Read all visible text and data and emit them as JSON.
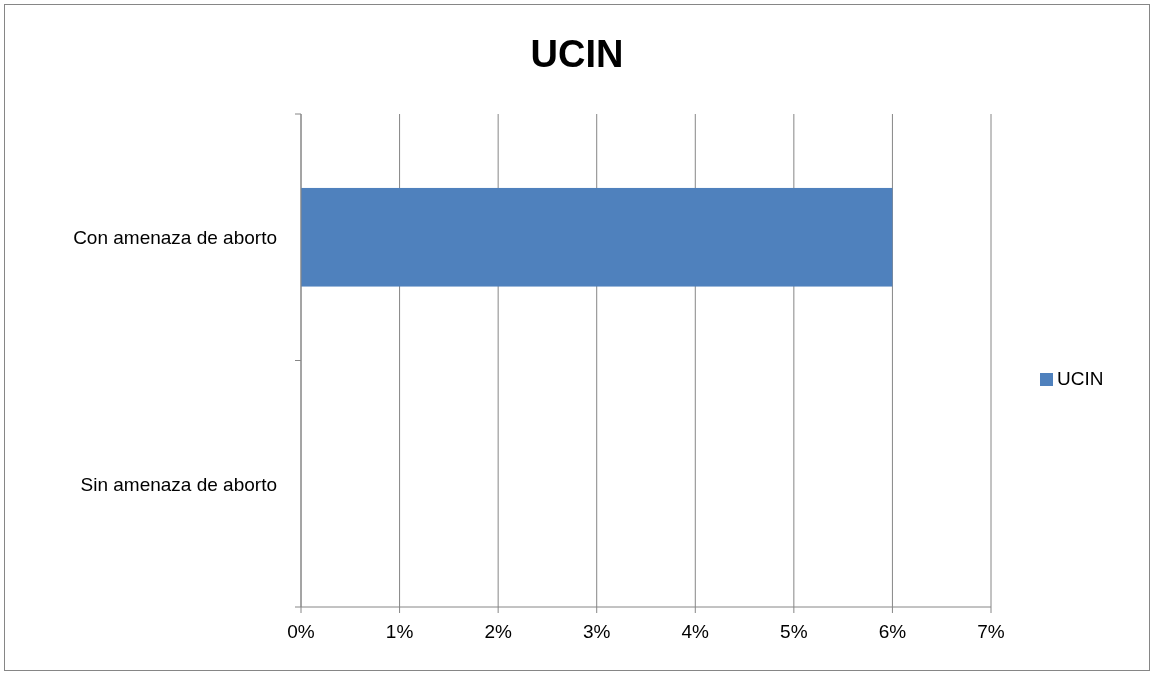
{
  "chart_data": {
    "type": "bar",
    "title": "UCIN",
    "orientation": "horizontal",
    "categories": [
      "Con amenaza de aborto",
      "Sin amenaza de aborto"
    ],
    "series": [
      {
        "name": "UCIN",
        "color": "#4f81bd",
        "values": [
          6,
          0
        ]
      }
    ],
    "xlim": [
      0,
      7
    ],
    "xticks": [
      {
        "value": 0,
        "label": "0%"
      },
      {
        "value": 1,
        "label": "1%"
      },
      {
        "value": 2,
        "label": "2%"
      },
      {
        "value": 3,
        "label": "3%"
      },
      {
        "value": 4,
        "label": "4%"
      },
      {
        "value": 5,
        "label": "5%"
      },
      {
        "value": 6,
        "label": "6%"
      },
      {
        "value": 7,
        "label": "7%"
      }
    ],
    "grid": "x",
    "legend": "right"
  }
}
